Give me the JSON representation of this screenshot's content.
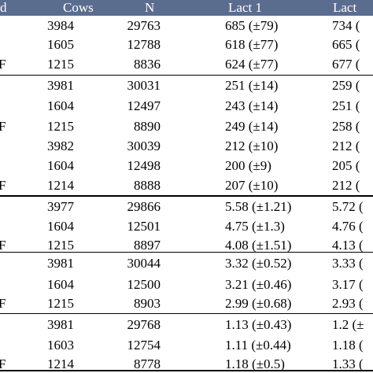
{
  "header": {
    "col0": "d",
    "cows": "Cows",
    "n": "N",
    "lact1": "Lact 1",
    "lact2": "Lact"
  },
  "rows": [
    {
      "mark": "",
      "cows": "3984",
      "n": "29763",
      "lact1": "685 (±79)",
      "lact2": "734 ("
    },
    {
      "mark": "",
      "cows": "1605",
      "n": "12788",
      "lact1": "618 (±77)",
      "lact2": "665 ("
    },
    {
      "mark": "F",
      "cows": "1215",
      "n": "8836",
      "lact1": "624 (±77)",
      "lact2": "677 ("
    },
    {
      "mark": "",
      "cows": "3981",
      "n": "30031",
      "lact1": "251 (±14)",
      "lact2": "259 ("
    },
    {
      "mark": "",
      "cows": "1604",
      "n": "12497",
      "lact1": "243 (±14)",
      "lact2": "251 ("
    },
    {
      "mark": "F",
      "cows": "1215",
      "n": "8890",
      "lact1": "249 (±14)",
      "lact2": "258 ("
    },
    {
      "mark": "",
      "cows": "3982",
      "n": "30039",
      "lact1": "212 (±10)",
      "lact2": "212 ("
    },
    {
      "mark": "",
      "cows": "1604",
      "n": "12498",
      "lact1": "200 (±9)",
      "lact2": "205 ("
    },
    {
      "mark": "F",
      "cows": "1214",
      "n": "8888",
      "lact1": "207 (±10)",
      "lact2": "212 ("
    },
    {
      "mark": "",
      "cows": "3977",
      "n": "29866",
      "lact1": "5.58 (±1.21)",
      "lact2": "5.72 ("
    },
    {
      "mark": "",
      "cows": "1604",
      "n": "12501",
      "lact1": "4.75 (±1.3)",
      "lact2": "4.76 ("
    },
    {
      "mark": "F",
      "cows": "1215",
      "n": "8897",
      "lact1": "4.08 (±1.51)",
      "lact2": "4.13 ("
    },
    {
      "mark": "",
      "cows": "3981",
      "n": "30044",
      "lact1": "3.32 (±0.52)",
      "lact2": "3.33 ("
    },
    {
      "mark": "",
      "cows": "1604",
      "n": "12500",
      "lact1": "3.21 (±0.46)",
      "lact2": "3.17 ("
    },
    {
      "mark": "F",
      "cows": "1215",
      "n": "8903",
      "lact1": "2.99 (±0.68)",
      "lact2": "2.93 ("
    },
    {
      "mark": "",
      "cows": "3981",
      "n": "29768",
      "lact1": "1.13 (±0.43)",
      "lact2": "1.2 (±"
    },
    {
      "mark": "",
      "cows": "1603",
      "n": "12754",
      "lact1": "1.11 (±0.44)",
      "lact2": "1.18 ("
    },
    {
      "mark": "F",
      "cows": "1214",
      "n": "8778",
      "lact1": "1.18 (±0.5)",
      "lact2": "1.33 ("
    }
  ]
}
